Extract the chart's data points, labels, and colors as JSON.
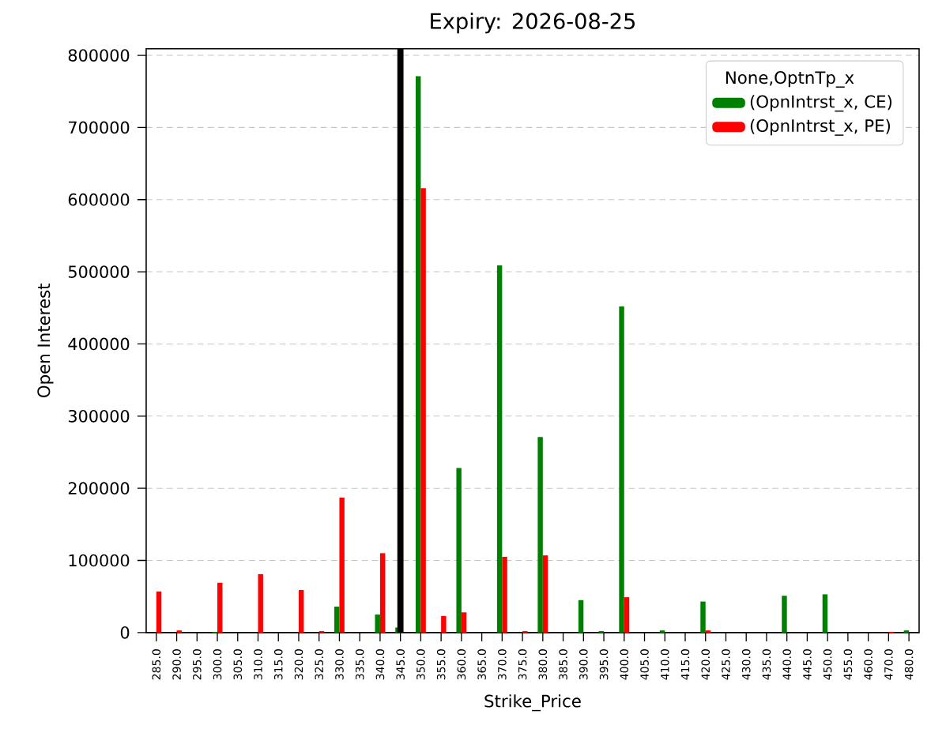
{
  "chart_data": {
    "type": "bar",
    "title": "Expiry: 2026-08-25",
    "xlabel": "Strike_Price",
    "ylabel": "Open Interest",
    "categories": [
      "285.0",
      "290.0",
      "295.0",
      "300.0",
      "305.0",
      "310.0",
      "315.0",
      "320.0",
      "325.0",
      "330.0",
      "335.0",
      "340.0",
      "345.0",
      "350.0",
      "355.0",
      "360.0",
      "365.0",
      "370.0",
      "375.0",
      "380.0",
      "385.0",
      "390.0",
      "395.0",
      "400.0",
      "405.0",
      "410.0",
      "415.0",
      "420.0",
      "425.0",
      "430.0",
      "435.0",
      "440.0",
      "445.0",
      "450.0",
      "455.0",
      "460.0",
      "470.0",
      "480.0"
    ],
    "series": [
      {
        "name": "(OpnIntrst_x, CE)",
        "color": "#008000",
        "values": [
          0,
          0,
          0,
          1000,
          0,
          0,
          0,
          0,
          0,
          36000,
          0,
          25000,
          7000,
          771000,
          0,
          228000,
          0,
          509000,
          0,
          271000,
          0,
          45000,
          2000,
          452000,
          0,
          3000,
          0,
          43000,
          0,
          0,
          0,
          51000,
          0,
          53000,
          0,
          0,
          0,
          3000
        ]
      },
      {
        "name": "(OpnIntrst_x, PE)",
        "color": "#ff0000",
        "values": [
          57000,
          3000,
          0,
          69000,
          0,
          81000,
          0,
          59000,
          2000,
          187000,
          0,
          110000,
          null,
          616000,
          23000,
          28000,
          0,
          105000,
          2000,
          107000,
          0,
          0,
          0,
          49000,
          0,
          0,
          0,
          3000,
          0,
          0,
          0,
          0,
          0,
          0,
          0,
          0,
          1000,
          0
        ]
      }
    ],
    "ylim": [
      0,
      809000
    ],
    "yticks": [
      0,
      100000,
      200000,
      300000,
      400000,
      500000,
      600000,
      700000,
      800000
    ],
    "grid": "y",
    "legend": "top right",
    "legend_title": "None,OptnTp_x",
    "ref_lines": [
      {
        "axis": "x",
        "value": "345.0",
        "color": "#000000"
      }
    ]
  }
}
